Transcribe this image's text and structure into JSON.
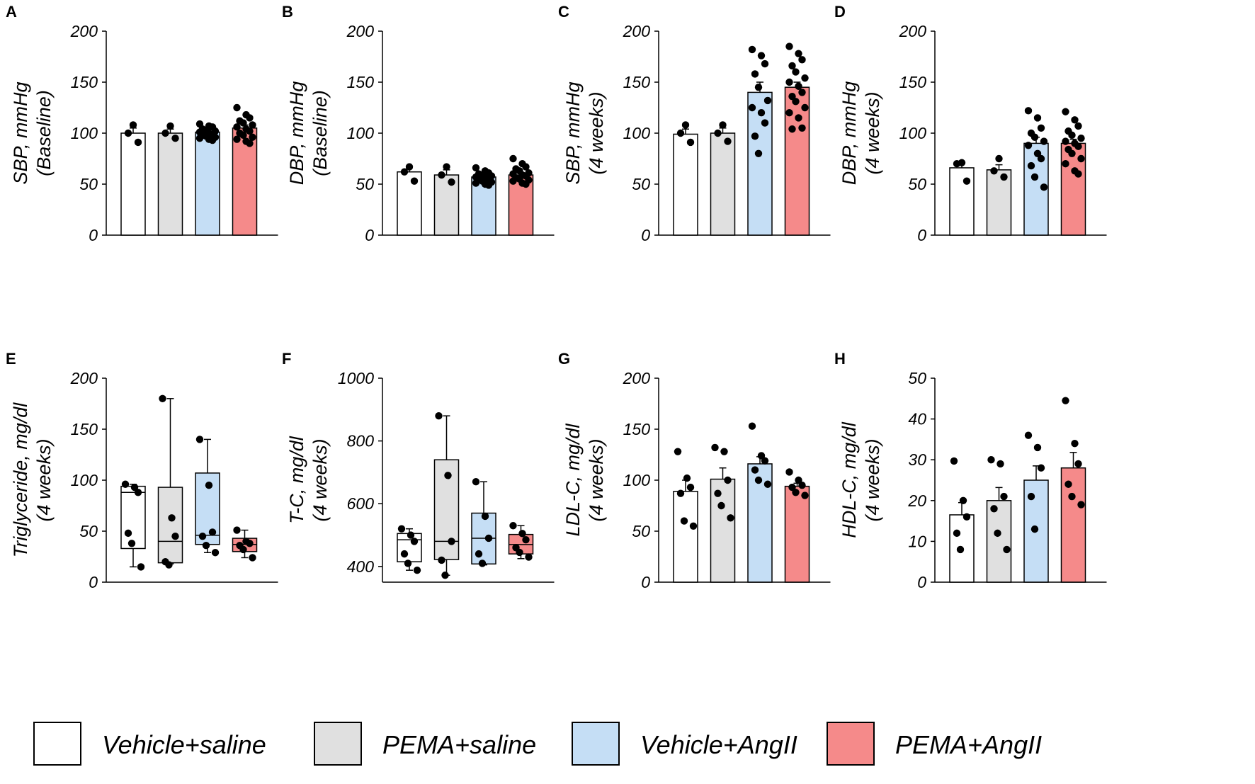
{
  "groups": [
    "Vehicle+saline",
    "PEMA+saline",
    "Vehicle+AngII",
    "PEMA+AngII"
  ],
  "colors": {
    "Vehicle+saline": "#ffffff",
    "PEMA+saline": "#e0e0e0",
    "Vehicle+AngII": "#c5def5",
    "PEMA+AngII": "#f58a8a"
  },
  "legend": [
    {
      "label": "Vehicle+saline",
      "color": "#ffffff"
    },
    {
      "label": "PEMA+saline",
      "color": "#e0e0e0"
    },
    {
      "label": "Vehicle+AngII",
      "color": "#c5def5"
    },
    {
      "label": "PEMA+AngII",
      "color": "#f58a8a"
    }
  ],
  "chart_data": [
    {
      "panel": "A",
      "type": "bar",
      "ylabel": [
        "SBP, mmHg",
        "(Baseline)"
      ],
      "ylim": [
        0,
        200
      ],
      "yticks": [
        "200",
        "150",
        "100",
        "50",
        "0"
      ],
      "series": [
        {
          "name": "Vehicle+saline",
          "mean": 100,
          "sem": 5,
          "points": [
            108,
            100,
            91
          ]
        },
        {
          "name": "PEMA+saline",
          "mean": 100,
          "sem": 4,
          "points": [
            107,
            100,
            95
          ]
        },
        {
          "name": "Vehicle+AngII",
          "mean": 101,
          "sem": 2,
          "points": [
            109,
            107,
            106,
            104,
            103,
            102,
            101,
            100,
            99,
            98,
            97,
            96,
            95,
            94,
            93
          ]
        },
        {
          "name": "PEMA+AngII",
          "mean": 105,
          "sem": 3,
          "points": [
            125,
            118,
            115,
            112,
            110,
            108,
            106,
            104,
            102,
            100,
            98,
            96,
            94,
            92,
            90
          ]
        }
      ]
    },
    {
      "panel": "B",
      "type": "bar",
      "ylabel": [
        "DBP, mmHg",
        "(Baseline)"
      ],
      "ylim": [
        0,
        200
      ],
      "yticks": [
        "200",
        "150",
        "100",
        "50",
        "0"
      ],
      "series": [
        {
          "name": "Vehicle+saline",
          "mean": 62,
          "sem": 4,
          "points": [
            67,
            62,
            53
          ]
        },
        {
          "name": "PEMA+saline",
          "mean": 59,
          "sem": 5,
          "points": [
            67,
            59,
            52
          ]
        },
        {
          "name": "Vehicle+AngII",
          "mean": 57,
          "sem": 2,
          "points": [
            66,
            63,
            61,
            60,
            59,
            58,
            57,
            56,
            55,
            54,
            53,
            52,
            51,
            50,
            49
          ]
        },
        {
          "name": "PEMA+AngII",
          "mean": 59,
          "sem": 2,
          "points": [
            75,
            70,
            67,
            65,
            63,
            61,
            60,
            59,
            58,
            56,
            55,
            54,
            53,
            51,
            50
          ]
        }
      ]
    },
    {
      "panel": "C",
      "type": "bar",
      "ylabel": [
        "SBP, mmHg",
        "(4 weeks)"
      ],
      "ylim": [
        0,
        200
      ],
      "yticks": [
        "200",
        "150",
        "100",
        "50",
        "0"
      ],
      "series": [
        {
          "name": "Vehicle+saline",
          "mean": 99,
          "sem": 5,
          "points": [
            108,
            100,
            91
          ]
        },
        {
          "name": "PEMA+saline",
          "mean": 100,
          "sem": 5,
          "points": [
            108,
            100,
            92
          ]
        },
        {
          "name": "Vehicle+AngII",
          "mean": 140,
          "sem": 10,
          "points": [
            182,
            176,
            168,
            158,
            145,
            132,
            125,
            120,
            110,
            97,
            80
          ]
        },
        {
          "name": "PEMA+AngII",
          "mean": 145,
          "sem": 5,
          "points": [
            185,
            178,
            172,
            166,
            160,
            154,
            150,
            146,
            140,
            136,
            131,
            125,
            120,
            115,
            105,
            104
          ]
        }
      ]
    },
    {
      "panel": "D",
      "type": "bar",
      "ylabel": [
        "DBP, mmHg",
        "(4 weeks)"
      ],
      "ylim": [
        0,
        200
      ],
      "yticks": [
        "200",
        "150",
        "100",
        "50",
        "0"
      ],
      "series": [
        {
          "name": "Vehicle+saline",
          "mean": 66,
          "sem": 4,
          "points": [
            71,
            70,
            53
          ]
        },
        {
          "name": "PEMA+saline",
          "mean": 64,
          "sem": 5,
          "points": [
            75,
            63,
            57
          ]
        },
        {
          "name": "Vehicle+AngII",
          "mean": 90,
          "sem": 6,
          "points": [
            122,
            115,
            105,
            100,
            96,
            92,
            88,
            80,
            75,
            68,
            57,
            47
          ]
        },
        {
          "name": "PEMA+AngII",
          "mean": 90,
          "sem": 4,
          "points": [
            121,
            113,
            107,
            102,
            98,
            95,
            92,
            90,
            87,
            84,
            80,
            75,
            70,
            63,
            60
          ]
        }
      ]
    },
    {
      "panel": "E",
      "type": "box",
      "ylabel": [
        "Triglyceride, mg/dl",
        "(4 weeks)"
      ],
      "ylim": [
        0,
        200
      ],
      "yticks": [
        "200",
        "150",
        "100",
        "50",
        "0"
      ],
      "series": [
        {
          "name": "Vehicle+saline",
          "min": 15,
          "q1": 33,
          "median": 88,
          "q3": 94,
          "max": 96,
          "points": [
            96,
            93,
            88,
            48,
            38,
            15
          ]
        },
        {
          "name": "PEMA+saline",
          "min": 18,
          "q1": 19,
          "median": 40,
          "q3": 93,
          "max": 180,
          "points": [
            180,
            63,
            45,
            20,
            17
          ]
        },
        {
          "name": "Vehicle+AngII",
          "min": 29,
          "q1": 37,
          "median": 46,
          "q3": 107,
          "max": 140,
          "points": [
            140,
            95,
            49,
            45,
            36,
            29
          ]
        },
        {
          "name": "PEMA+AngII",
          "min": 24,
          "q1": 30,
          "median": 37,
          "q3": 43,
          "max": 51,
          "points": [
            51,
            40,
            38,
            36,
            32,
            24
          ]
        }
      ]
    },
    {
      "panel": "F",
      "type": "box",
      "ylabel": [
        "T-C, mg/dl",
        "(4 weeks)"
      ],
      "ylim": [
        350,
        1000
      ],
      "yticks": [
        "1000",
        "800",
        "600",
        "400"
      ],
      "ytick_values": [
        1000,
        800,
        600,
        400
      ],
      "series": [
        {
          "name": "Vehicle+saline",
          "min": 388,
          "q1": 415,
          "median": 485,
          "q3": 505,
          "max": 520,
          "points": [
            520,
            500,
            480,
            440,
            410,
            388
          ]
        },
        {
          "name": "PEMA+saline",
          "min": 372,
          "q1": 422,
          "median": 480,
          "q3": 740,
          "max": 880,
          "points": [
            880,
            690,
            480,
            420,
            372
          ]
        },
        {
          "name": "Vehicle+AngII",
          "min": 405,
          "q1": 408,
          "median": 490,
          "q3": 570,
          "max": 670,
          "points": [
            670,
            560,
            490,
            440,
            410
          ]
        },
        {
          "name": "PEMA+AngII",
          "min": 425,
          "q1": 440,
          "median": 470,
          "q3": 502,
          "max": 530,
          "points": [
            530,
            505,
            485,
            460,
            445,
            430
          ]
        }
      ]
    },
    {
      "panel": "G",
      "type": "bar",
      "ylabel": [
        "LDL-C, mg/dl",
        "(4 weeks)"
      ],
      "ylim": [
        0,
        200
      ],
      "yticks": [
        "200",
        "150",
        "100",
        "50",
        "0"
      ],
      "series": [
        {
          "name": "Vehicle+saline",
          "mean": 89,
          "sem": 11,
          "points": [
            128,
            102,
            93,
            87,
            60,
            55
          ]
        },
        {
          "name": "PEMA+saline",
          "mean": 101,
          "sem": 11,
          "points": [
            132,
            128,
            100,
            87,
            75,
            63
          ]
        },
        {
          "name": "Vehicle+AngII",
          "mean": 116,
          "sem": 7,
          "points": [
            153,
            124,
            119,
            110,
            100,
            96
          ]
        },
        {
          "name": "PEMA+AngII",
          "mean": 94,
          "sem": 3,
          "points": [
            108,
            100,
            95,
            93,
            88,
            85
          ]
        }
      ]
    },
    {
      "panel": "H",
      "type": "bar",
      "ylabel": [
        "HDL-C, mg/dl",
        "(4 weeks)"
      ],
      "ylim": [
        0,
        50
      ],
      "yticks": [
        "50",
        "40",
        "30",
        "20",
        "10",
        "0"
      ],
      "series": [
        {
          "name": "Vehicle+saline",
          "mean": 16.5,
          "sem": 3,
          "points": [
            29.7,
            20,
            16,
            12,
            8
          ]
        },
        {
          "name": "PEMA+saline",
          "mean": 20,
          "sem": 3.2,
          "points": [
            30,
            29,
            21,
            18,
            12,
            8
          ]
        },
        {
          "name": "Vehicle+AngII",
          "mean": 25,
          "sem": 3.5,
          "points": [
            36,
            33,
            28,
            21,
            13
          ]
        },
        {
          "name": "PEMA+AngII",
          "mean": 28,
          "sem": 3.8,
          "points": [
            44.5,
            34,
            29,
            24,
            21,
            19
          ]
        }
      ]
    }
  ]
}
